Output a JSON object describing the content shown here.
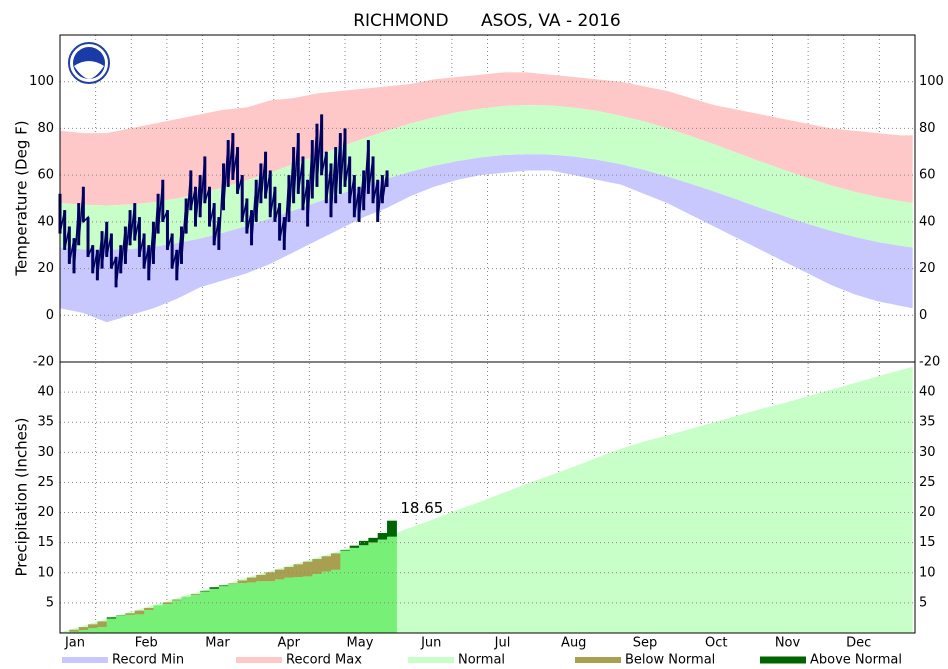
{
  "title": "RICHMOND      ASOS, VA - 2016",
  "legend": [
    {
      "name": "Record Min",
      "color": "#c8c8ff"
    },
    {
      "name": "Record Max",
      "color": "#ffc8c8"
    },
    {
      "name": "Normal",
      "color": "#c8ffc8"
    },
    {
      "name": "Below Normal",
      "color": "#a8a050"
    },
    {
      "name": "Above Normal",
      "color": "#006400"
    }
  ],
  "chart_data": [
    {
      "type": "temperature-range",
      "ylabel": "Temperature (Deg F)",
      "xlim": [
        1,
        367
      ],
      "ylim": [
        -20,
        120
      ],
      "yticks": [
        -20,
        0,
        20,
        40,
        60,
        80,
        100
      ],
      "grid": true,
      "x": [
        1,
        11,
        21,
        31,
        41,
        51,
        61,
        71,
        81,
        91,
        101,
        111,
        121,
        131,
        141,
        151,
        161,
        171,
        181,
        191,
        201,
        211,
        221,
        231,
        241,
        251,
        261,
        271,
        281,
        291,
        301,
        311,
        321,
        331,
        341,
        351,
        361,
        366
      ],
      "record_min": [
        3,
        1,
        -3,
        0,
        3,
        7,
        12,
        15,
        18,
        22,
        27,
        32,
        37,
        42,
        46,
        51,
        55,
        58,
        60,
        61,
        62,
        62,
        60,
        58,
        56,
        52,
        48,
        43,
        38,
        33,
        28,
        23,
        18,
        13,
        9,
        6,
        4,
        3
      ],
      "record_max": [
        79,
        78,
        78,
        80,
        82,
        84,
        86,
        88,
        89,
        92,
        93,
        95,
        96,
        97,
        98,
        99,
        101,
        102,
        103,
        104,
        104,
        103,
        102,
        101,
        100,
        98,
        96,
        93,
        90,
        88,
        86,
        84,
        82,
        80,
        79,
        78,
        77,
        77
      ],
      "normal_low": [
        29.1,
        28.2,
        28.0,
        28.4,
        29.3,
        30.9,
        32.9,
        35.4,
        38.3,
        41.5,
        44.9,
        48.4,
        51.9,
        55.3,
        58.5,
        61.5,
        64.0,
        66.0,
        67.6,
        68.6,
        69.0,
        68.8,
        68.0,
        66.6,
        64.7,
        62.3,
        59.4,
        56.3,
        53.0,
        49.5,
        45.9,
        42.5,
        39.2,
        36.2,
        33.6,
        31.4,
        29.7,
        29.1
      ],
      "normal_high": [
        48.1,
        47.3,
        47.0,
        47.4,
        48.4,
        50.0,
        52.1,
        54.8,
        57.8,
        61.1,
        64.7,
        68.4,
        72.1,
        75.7,
        79.0,
        82.1,
        84.7,
        86.9,
        88.5,
        89.6,
        90.0,
        89.8,
        88.9,
        87.5,
        85.4,
        83.0,
        80.0,
        76.7,
        73.2,
        69.5,
        65.8,
        62.2,
        58.8,
        55.6,
        52.9,
        50.6,
        48.8,
        48.1
      ],
      "observed": {
        "color": "#000060",
        "x": [
          1,
          3,
          5,
          7,
          9,
          11,
          13,
          15,
          17,
          19,
          21,
          23,
          25,
          27,
          29,
          31,
          33,
          35,
          37,
          39,
          41,
          43,
          45,
          47,
          49,
          51,
          53,
          55,
          57,
          59,
          61,
          63,
          65,
          67,
          69,
          71,
          73,
          75,
          77,
          79,
          81,
          83,
          85,
          87,
          89,
          91,
          93,
          95,
          97,
          99,
          101,
          103,
          105,
          107,
          109,
          111,
          113,
          115,
          117,
          119,
          121,
          123,
          125,
          127,
          129,
          131,
          133,
          135,
          137,
          139,
          141
        ],
        "high": [
          52,
          45,
          38,
          33,
          48,
          55,
          42,
          30,
          28,
          36,
          40,
          35,
          25,
          30,
          38,
          45,
          48,
          42,
          35,
          30,
          40,
          52,
          58,
          45,
          35,
          28,
          38,
          50,
          62,
          55,
          60,
          68,
          55,
          48,
          42,
          65,
          75,
          78,
          72,
          60,
          50,
          45,
          58,
          65,
          70,
          62,
          55,
          48,
          42,
          60,
          72,
          78,
          68,
          58,
          75,
          82,
          86,
          70,
          65,
          72,
          78,
          80,
          68,
          60,
          55,
          62,
          75,
          68,
          58,
          60,
          62
        ],
        "low": [
          35,
          28,
          22,
          18,
          30,
          40,
          25,
          18,
          15,
          20,
          25,
          20,
          12,
          18,
          22,
          30,
          32,
          25,
          20,
          15,
          22,
          35,
          40,
          28,
          20,
          15,
          22,
          35,
          45,
          38,
          42,
          48,
          38,
          30,
          28,
          45,
          55,
          58,
          52,
          40,
          35,
          30,
          40,
          48,
          50,
          42,
          40,
          32,
          28,
          40,
          48,
          52,
          45,
          38,
          50,
          55,
          60,
          48,
          42,
          48,
          52,
          55,
          48,
          42,
          40,
          45,
          52,
          48,
          40,
          48,
          55
        ]
      }
    },
    {
      "type": "precipitation-cumulative",
      "ylabel": "Precipitation (Inches)",
      "xlim": [
        1,
        367
      ],
      "ylim": [
        0,
        45
      ],
      "yticks": [
        5,
        10,
        15,
        20,
        25,
        30,
        35,
        40
      ],
      "grid": true,
      "categories": [
        "Jan",
        "Feb",
        "Mar",
        "Apr",
        "May",
        "Jun",
        "Jul",
        "Aug",
        "Sep",
        "Oct",
        "Nov",
        "Dec"
      ],
      "x": [
        1,
        11,
        21,
        31,
        41,
        51,
        61,
        71,
        81,
        91,
        101,
        111,
        121,
        131,
        141,
        151,
        161,
        171,
        181,
        191,
        201,
        211,
        221,
        231,
        241,
        251,
        261,
        271,
        281,
        291,
        301,
        311,
        321,
        331,
        341,
        351,
        361,
        366
      ],
      "normal": [
        0.1,
        1.2,
        2.4,
        3.5,
        4.6,
        5.8,
        6.9,
        8.0,
        9.2,
        10.3,
        11.4,
        12.5,
        13.7,
        14.8,
        16.0,
        17.5,
        18.9,
        20.4,
        21.8,
        23.3,
        24.8,
        26.2,
        27.6,
        29.1,
        30.6,
        31.8,
        32.8,
        33.9,
        35.0,
        36.1,
        37.2,
        38.2,
        39.3,
        40.4,
        41.5,
        42.6,
        43.7,
        44.2
      ],
      "observed": {
        "color": "#78f078",
        "x": [
          1,
          5,
          9,
          13,
          17,
          21,
          25,
          29,
          33,
          37,
          41,
          45,
          49,
          53,
          57,
          61,
          65,
          69,
          73,
          77,
          81,
          85,
          89,
          93,
          97,
          101,
          105,
          109,
          113,
          117,
          121,
          125,
          129,
          133,
          137,
          141
        ],
        "values": [
          0,
          0.2,
          0.5,
          0.8,
          1.0,
          2.6,
          2.9,
          3.0,
          3.1,
          3.8,
          4.6,
          4.8,
          5.4,
          6.0,
          6.3,
          7.0,
          7.6,
          7.9,
          8.1,
          8.3,
          8.4,
          8.6,
          8.6,
          8.9,
          9.2,
          9.3,
          9.4,
          9.8,
          10.2,
          10.5,
          13.8,
          14.5,
          15.3,
          15.8,
          16.6,
          18.65
        ]
      }
    }
  ]
}
